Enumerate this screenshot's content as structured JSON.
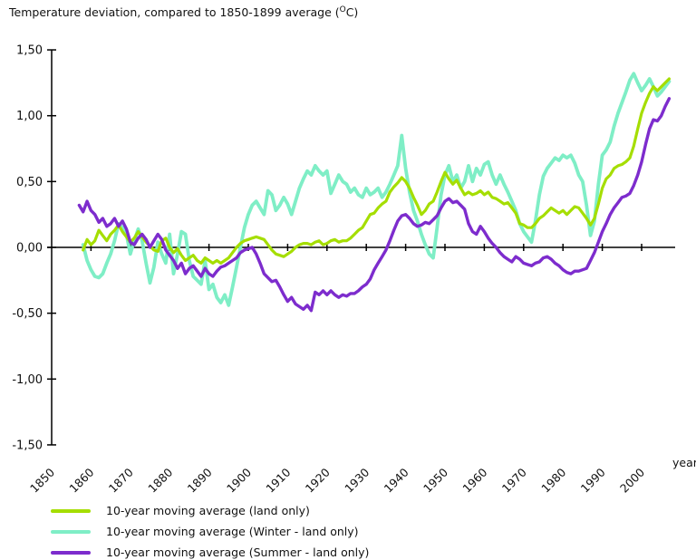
{
  "title": {
    "prefix": "Temperature deviation, compared to 1850-1899 average (",
    "degree_sup": "O",
    "suffix": "C)"
  },
  "chart_data": {
    "type": "line",
    "title": "Temperature deviation, compared to 1850-1899 average (°C)",
    "xlabel": "year",
    "ylabel": "",
    "ylim": [
      -1.5,
      1.5
    ],
    "xlim": [
      1850,
      2008
    ],
    "grid": false,
    "zero_axis": true,
    "legend_position": "bottom-left",
    "y_ticks": {
      "values": [
        1.5,
        1.0,
        0.5,
        0.0,
        -0.5,
        -1.0,
        -1.5
      ],
      "labels": [
        "1,50",
        "1,00",
        "0,50",
        "0,00",
        "-0,50",
        "-1,00",
        "-1,50"
      ]
    },
    "x_ticks": {
      "values": [
        1850,
        1860,
        1870,
        1880,
        1890,
        1900,
        1910,
        1920,
        1930,
        1940,
        1950,
        1960,
        1970,
        1980,
        1990,
        2000
      ],
      "labels": [
        "1850",
        "1860",
        "1870",
        "1880",
        "1890",
        "1900",
        "1910",
        "1920",
        "1930",
        "1940",
        "1950",
        "1960",
        "1970",
        "1980",
        "1990",
        "2000"
      ]
    },
    "x_axis_label": "year",
    "series": [
      {
        "name": "annual",
        "legend_label": "10-year moving average (land only)",
        "color": "#a5de02",
        "stroke_width": 3.2,
        "start_year": 1858,
        "step_years": 1,
        "values": [
          -0.02,
          0.06,
          0.02,
          0.05,
          0.13,
          0.09,
          0.05,
          0.1,
          0.13,
          0.17,
          0.12,
          0.08,
          0.04,
          0.07,
          0.12,
          0.08,
          0.04,
          0.01,
          -0.02,
          -0.03,
          0.05,
          0.07,
          0,
          -0.04,
          -0.01,
          -0.06,
          -0.1,
          -0.08,
          -0.06,
          -0.1,
          -0.12,
          -0.08,
          -0.1,
          -0.12,
          -0.1,
          -0.12,
          -0.1,
          -0.08,
          -0.04,
          0,
          0.03,
          0.05,
          0.06,
          0.07,
          0.08,
          0.07,
          0.06,
          0.02,
          -0.02,
          -0.05,
          -0.06,
          -0.07,
          -0.05,
          -0.03,
          0,
          0.02,
          0.03,
          0.03,
          0.02,
          0.04,
          0.05,
          0.02,
          0.03,
          0.05,
          0.06,
          0.04,
          0.05,
          0.05,
          0.07,
          0.1,
          0.13,
          0.15,
          0.2,
          0.25,
          0.26,
          0.3,
          0.33,
          0.35,
          0.42,
          0.46,
          0.49,
          0.53,
          0.5,
          0.45,
          0.38,
          0.32,
          0.25,
          0.28,
          0.33,
          0.35,
          0.42,
          0.5,
          0.57,
          0.52,
          0.48,
          0.51,
          0.45,
          0.4,
          0.42,
          0.4,
          0.41,
          0.43,
          0.4,
          0.42,
          0.38,
          0.37,
          0.35,
          0.33,
          0.34,
          0.3,
          0.26,
          0.18,
          0.17,
          0.15,
          0.15,
          0.18,
          0.22,
          0.24,
          0.27,
          0.3,
          0.28,
          0.26,
          0.28,
          0.25,
          0.28,
          0.31,
          0.3,
          0.26,
          0.22,
          0.17,
          0.22,
          0.33,
          0.45,
          0.52,
          0.55,
          0.6,
          0.62,
          0.63,
          0.65,
          0.68,
          0.77,
          0.9,
          1.02,
          1.1,
          1.17,
          1.22,
          1.19,
          1.22,
          1.25,
          1.28
        ]
      },
      {
        "name": "winter",
        "legend_label": "10-year moving average (Winter - land only)",
        "color": "#7feec6",
        "stroke_width": 3.8,
        "start_year": 1858,
        "step_years": 1,
        "values": [
          0.02,
          -0.1,
          -0.17,
          -0.22,
          -0.23,
          -0.2,
          -0.12,
          -0.05,
          0.05,
          0.18,
          0.15,
          0.1,
          -0.05,
          0.05,
          0.14,
          0.05,
          -0.12,
          -0.27,
          -0.15,
          0.04,
          -0.05,
          -0.12,
          0.1,
          -0.2,
          -0.05,
          0.12,
          0.1,
          -0.1,
          -0.22,
          -0.25,
          -0.28,
          -0.1,
          -0.32,
          -0.28,
          -0.38,
          -0.42,
          -0.36,
          -0.44,
          -0.3,
          -0.15,
          0,
          0.15,
          0.25,
          0.32,
          0.35,
          0.3,
          0.25,
          0.43,
          0.4,
          0.28,
          0.32,
          0.38,
          0.33,
          0.25,
          0.35,
          0.45,
          0.52,
          0.58,
          0.55,
          0.62,
          0.58,
          0.55,
          0.58,
          0.41,
          0.48,
          0.55,
          0.5,
          0.48,
          0.42,
          0.45,
          0.4,
          0.38,
          0.45,
          0.4,
          0.42,
          0.45,
          0.38,
          0.42,
          0.48,
          0.55,
          0.62,
          0.85,
          0.6,
          0.42,
          0.28,
          0.2,
          0.1,
          0.02,
          -0.05,
          -0.08,
          0.15,
          0.4,
          0.55,
          0.62,
          0.5,
          0.55,
          0.45,
          0.5,
          0.62,
          0.5,
          0.6,
          0.55,
          0.63,
          0.65,
          0.55,
          0.48,
          0.55,
          0.48,
          0.42,
          0.35,
          0.28,
          0.18,
          0.12,
          0.08,
          0.04,
          0.2,
          0.4,
          0.54,
          0.6,
          0.64,
          0.68,
          0.66,
          0.7,
          0.68,
          0.7,
          0.64,
          0.55,
          0.5,
          0.32,
          0.09,
          0.2,
          0.48,
          0.7,
          0.74,
          0.8,
          0.92,
          1.02,
          1.1,
          1.18,
          1.27,
          1.32,
          1.25,
          1.19,
          1.23,
          1.28,
          1.22,
          1.15,
          1.18,
          1.22,
          1.26
        ]
      },
      {
        "name": "summer",
        "legend_label": "10-year moving average (Summer - land only)",
        "color": "#7d2ccd",
        "stroke_width": 3.4,
        "start_year": 1857,
        "step_years": 1,
        "values": [
          0.32,
          0.27,
          0.35,
          0.28,
          0.25,
          0.19,
          0.22,
          0.16,
          0.18,
          0.22,
          0.16,
          0.2,
          0.14,
          0.04,
          0.02,
          0.07,
          0.1,
          0.06,
          0,
          0.05,
          0.1,
          0.06,
          -0.02,
          -0.06,
          -0.1,
          -0.16,
          -0.12,
          -0.2,
          -0.16,
          -0.14,
          -0.18,
          -0.22,
          -0.16,
          -0.2,
          -0.22,
          -0.18,
          -0.15,
          -0.14,
          -0.12,
          -0.1,
          -0.08,
          -0.04,
          -0.02,
          -0.01,
          0,
          -0.05,
          -0.12,
          -0.2,
          -0.23,
          -0.26,
          -0.25,
          -0.3,
          -0.36,
          -0.41,
          -0.38,
          -0.43,
          -0.45,
          -0.47,
          -0.44,
          -0.48,
          -0.34,
          -0.36,
          -0.33,
          -0.36,
          -0.33,
          -0.36,
          -0.38,
          -0.36,
          -0.37,
          -0.35,
          -0.35,
          -0.33,
          -0.3,
          -0.28,
          -0.24,
          -0.17,
          -0.12,
          -0.07,
          -0.02,
          0.05,
          0.13,
          0.2,
          0.24,
          0.25,
          0.22,
          0.18,
          0.16,
          0.17,
          0.19,
          0.18,
          0.21,
          0.24,
          0.3,
          0.35,
          0.37,
          0.34,
          0.35,
          0.32,
          0.29,
          0.18,
          0.12,
          0.1,
          0.16,
          0.12,
          0.07,
          0.03,
          0,
          -0.04,
          -0.07,
          -0.09,
          -0.11,
          -0.07,
          -0.09,
          -0.12,
          -0.13,
          -0.14,
          -0.12,
          -0.11,
          -0.08,
          -0.07,
          -0.09,
          -0.12,
          -0.14,
          -0.17,
          -0.19,
          -0.2,
          -0.18,
          -0.18,
          -0.17,
          -0.16,
          -0.1,
          -0.04,
          0.04,
          0.12,
          0.18,
          0.25,
          0.3,
          0.34,
          0.38,
          0.39,
          0.41,
          0.47,
          0.55,
          0.65,
          0.78,
          0.9,
          0.97,
          0.96,
          1,
          1.07,
          1.13
        ]
      }
    ]
  }
}
